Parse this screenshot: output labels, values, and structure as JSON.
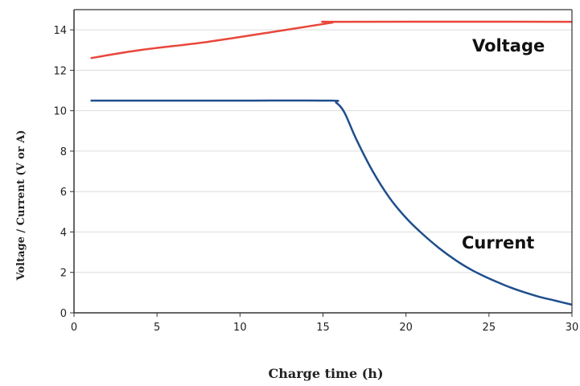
{
  "chart_data": {
    "type": "line",
    "title": "",
    "xlabel": "Charge time (h)",
    "ylabel": "Voltage / Current (V or A)",
    "xlim": [
      0,
      30
    ],
    "ylim": [
      0,
      15
    ],
    "x_ticks": [
      "0",
      "5",
      "10",
      "15",
      "20",
      "25",
      "30"
    ],
    "y_ticks": [
      "0",
      "2",
      "4",
      "6",
      "8",
      "10",
      "12",
      "14"
    ],
    "grid": "horizontal",
    "series": [
      {
        "name": "Voltage",
        "color": "#e8473a",
        "x": [
          1,
          4,
          8,
          12,
          15.5,
          16,
          30
        ],
        "y": [
          12.6,
          13.0,
          13.4,
          13.9,
          14.35,
          14.4,
          14.4
        ]
      },
      {
        "name": "Current",
        "color": "#1f4e8c",
        "x": [
          1,
          5,
          10,
          15.4,
          15.8,
          16.3,
          17,
          18,
          19,
          20,
          21,
          22,
          23,
          24,
          25,
          26,
          27,
          28,
          29,
          30
        ],
        "y": [
          10.5,
          10.5,
          10.5,
          10.5,
          10.4,
          9.9,
          8.6,
          7.0,
          5.7,
          4.7,
          3.9,
          3.2,
          2.6,
          2.1,
          1.7,
          1.35,
          1.05,
          0.8,
          0.6,
          0.4
        ]
      }
    ]
  }
}
